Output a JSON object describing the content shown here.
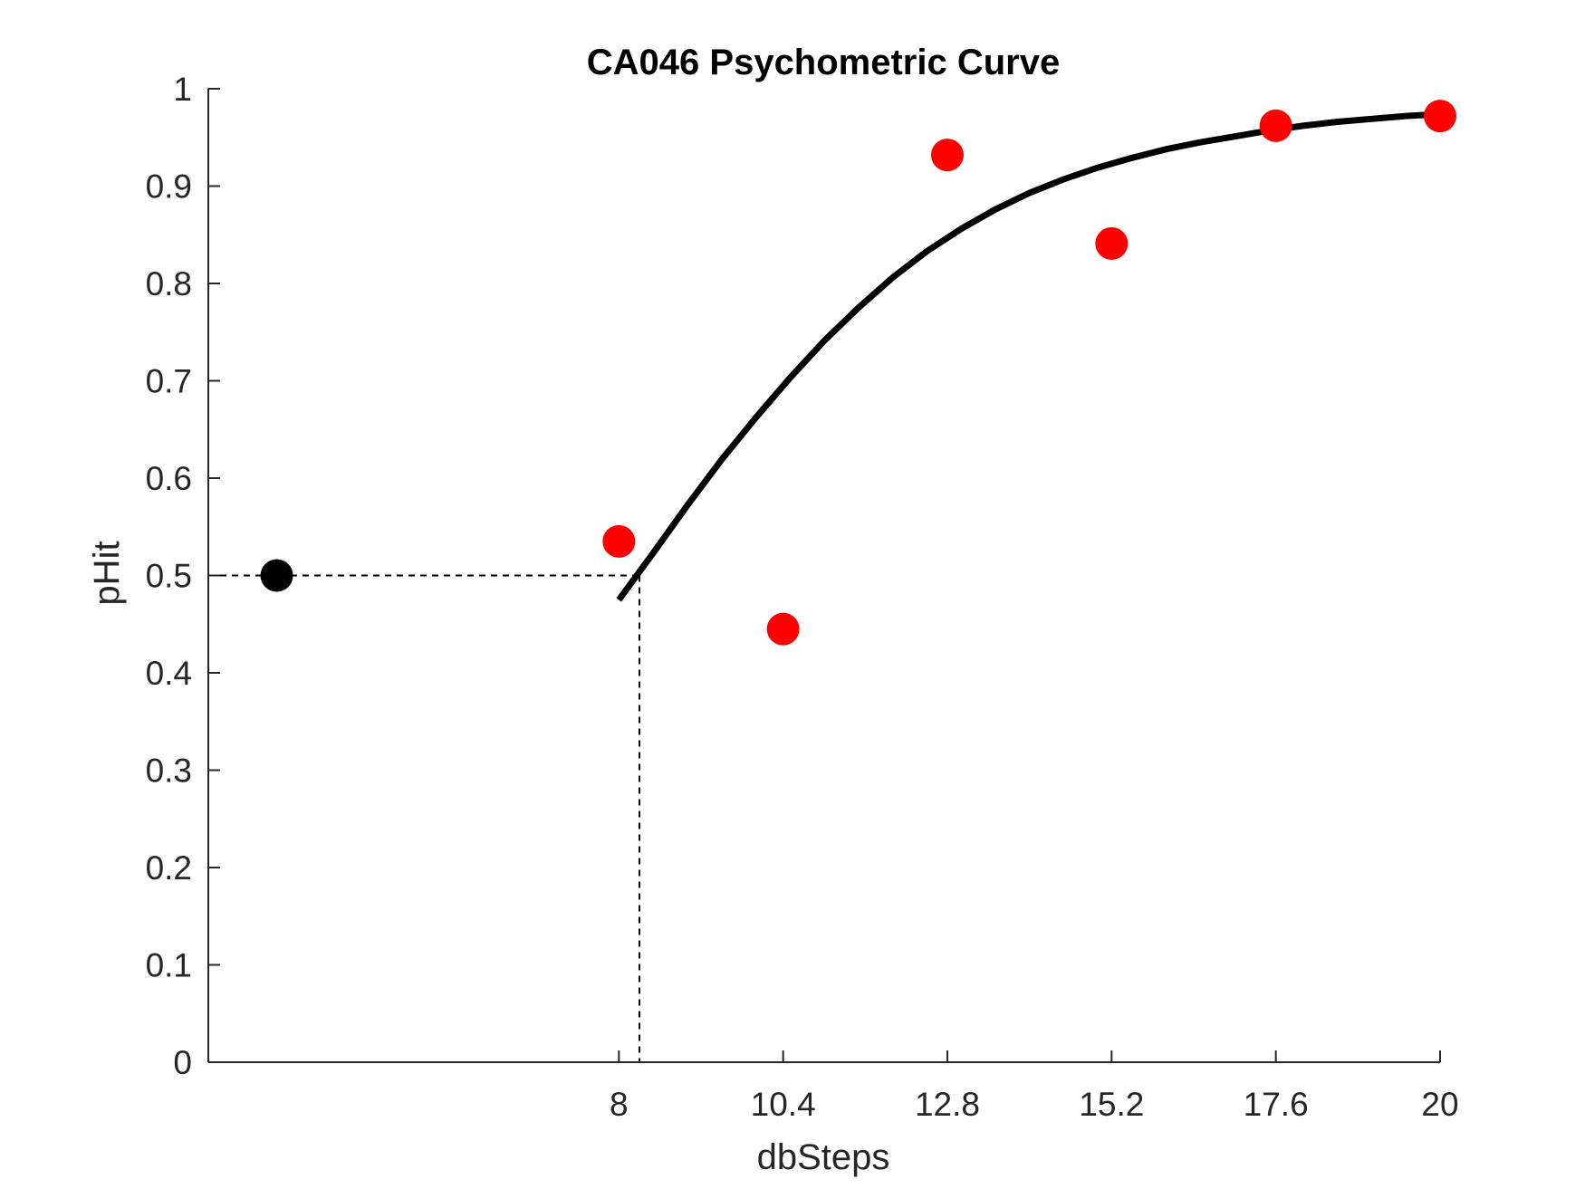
{
  "chart_data": {
    "type": "scatter",
    "title": "CA046 Psychometric Curve",
    "xlabel": "dbSteps",
    "ylabel": "pHit",
    "xlim": [
      2,
      20
    ],
    "ylim": [
      0,
      1
    ],
    "x_ticks": [
      8,
      10.4,
      12.8,
      15.2,
      17.6,
      20
    ],
    "x_tick_labels": [
      "8",
      "10.4",
      "12.8",
      "15.2",
      "17.6",
      "20"
    ],
    "y_ticks": [
      0,
      0.1,
      0.2,
      0.3,
      0.4,
      0.5,
      0.6,
      0.7,
      0.8,
      0.9,
      1
    ],
    "y_tick_labels": [
      "0",
      "0.1",
      "0.2",
      "0.3",
      "0.4",
      "0.5",
      "0.6",
      "0.7",
      "0.8",
      "0.9",
      "1"
    ],
    "grid": false,
    "series": [
      {
        "type": "scatter",
        "color": "#ff0000",
        "points": [
          {
            "x": 8,
            "y": 0.535
          },
          {
            "x": 10.4,
            "y": 0.445
          },
          {
            "x": 12.8,
            "y": 0.932
          },
          {
            "x": 15.2,
            "y": 0.841
          },
          {
            "x": 17.6,
            "y": 0.962
          },
          {
            "x": 20,
            "y": 0.972
          }
        ]
      },
      {
        "type": "scatter",
        "color": "#000000",
        "points": [
          {
            "x": 3,
            "y": 0.5
          }
        ]
      },
      {
        "type": "line",
        "color": "#000000",
        "points": [
          {
            "x": 8,
            "y": 0.475
          },
          {
            "x": 8.5,
            "y": 0.523
          },
          {
            "x": 9,
            "y": 0.572
          },
          {
            "x": 9.5,
            "y": 0.619
          },
          {
            "x": 10,
            "y": 0.662
          },
          {
            "x": 10.5,
            "y": 0.703
          },
          {
            "x": 11,
            "y": 0.741
          },
          {
            "x": 11.5,
            "y": 0.775
          },
          {
            "x": 12,
            "y": 0.806
          },
          {
            "x": 12.5,
            "y": 0.833
          },
          {
            "x": 13,
            "y": 0.856
          },
          {
            "x": 13.5,
            "y": 0.876
          },
          {
            "x": 14,
            "y": 0.893
          },
          {
            "x": 14.5,
            "y": 0.907
          },
          {
            "x": 15,
            "y": 0.919
          },
          {
            "x": 15.5,
            "y": 0.929
          },
          {
            "x": 16,
            "y": 0.938
          },
          {
            "x": 16.5,
            "y": 0.945
          },
          {
            "x": 17,
            "y": 0.951
          },
          {
            "x": 17.5,
            "y": 0.957
          },
          {
            "x": 18,
            "y": 0.962
          },
          {
            "x": 18.5,
            "y": 0.966
          },
          {
            "x": 19,
            "y": 0.969
          },
          {
            "x": 19.5,
            "y": 0.972
          },
          {
            "x": 20,
            "y": 0.974
          }
        ]
      }
    ],
    "threshold": {
      "x": 8.3,
      "y": 0.5,
      "style": "dashed"
    }
  }
}
